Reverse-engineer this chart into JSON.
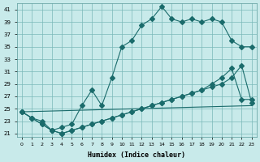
{
  "title": "",
  "xlabel": "Humidex (Indice chaleur)",
  "ylabel": "",
  "bg_color": "#c8eaea",
  "grid_color": "#7ab8b8",
  "line_color": "#1a6b6b",
  "marker": "D",
  "markersize": 3,
  "xlim": [
    -0.5,
    23.5
  ],
  "ylim": [
    20.5,
    42
  ],
  "xticks": [
    0,
    1,
    2,
    3,
    4,
    5,
    6,
    7,
    8,
    9,
    10,
    11,
    12,
    13,
    14,
    15,
    16,
    17,
    18,
    19,
    20,
    21,
    22,
    23
  ],
  "yticks": [
    21,
    23,
    25,
    27,
    29,
    31,
    33,
    35,
    37,
    39,
    41
  ],
  "line1_x": [
    0,
    1,
    2,
    3,
    4,
    5,
    6,
    7,
    8,
    9,
    10,
    11,
    12,
    13,
    14,
    15,
    16,
    17,
    18,
    19,
    20,
    21,
    22,
    23
  ],
  "line1_y": [
    24.5,
    23.5,
    23,
    21.5,
    22,
    22.5,
    25.5,
    28,
    25.5,
    30,
    35,
    36,
    38.5,
    39.5,
    41.5,
    39.5,
    39,
    39.5,
    39,
    39.5,
    39,
    36,
    35,
    35
  ],
  "line2_x": [
    0,
    1,
    2,
    3,
    4,
    5,
    6,
    7,
    8,
    9,
    10,
    11,
    12,
    13,
    14,
    15,
    16,
    17,
    18,
    19,
    20,
    21,
    22,
    23
  ],
  "line2_y": [
    24.5,
    23.5,
    22.5,
    21.5,
    21,
    21.5,
    22,
    22.5,
    23,
    23.5,
    24,
    24.5,
    25,
    25.5,
    26,
    26.5,
    27,
    27.5,
    28,
    28.5,
    29,
    30,
    32,
    26
  ],
  "line3_x": [
    0,
    1,
    2,
    3,
    4,
    5,
    6,
    7,
    8,
    9,
    10,
    11,
    12,
    13,
    14,
    15,
    16,
    17,
    18,
    19,
    20,
    21,
    22,
    23
  ],
  "line3_y": [
    24.5,
    23.5,
    22.5,
    21.5,
    21,
    21.5,
    22,
    22.5,
    23,
    23.5,
    24,
    24.5,
    25,
    25.5,
    26,
    26.5,
    27,
    27.5,
    28,
    29,
    30,
    31.5,
    26.5,
    26.5
  ],
  "line4_x": [
    0,
    23
  ],
  "line4_y": [
    24.5,
    25.5
  ]
}
